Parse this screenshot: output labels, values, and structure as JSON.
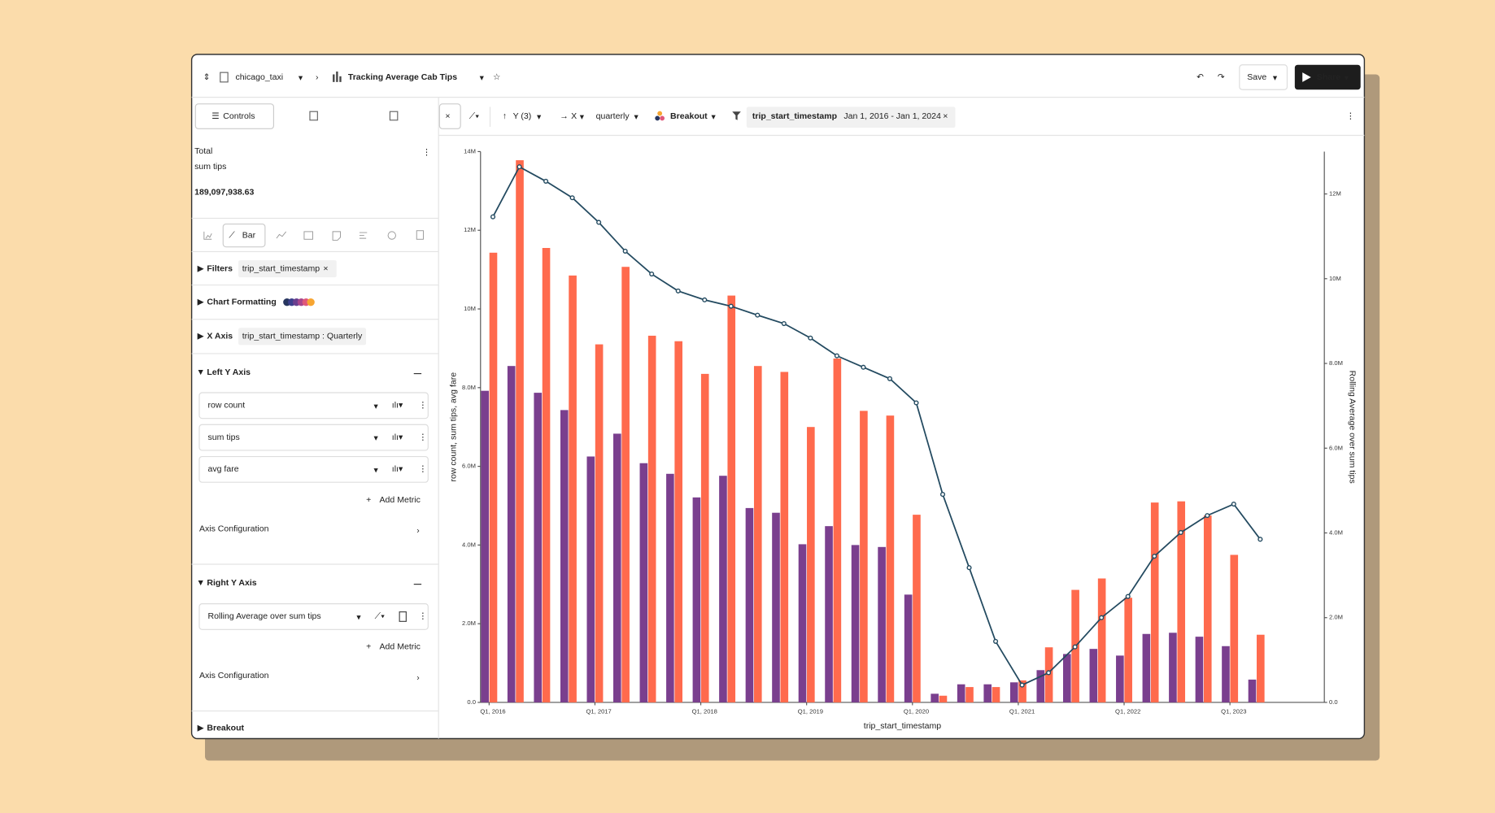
{
  "header": {
    "dataset": "chicago_taxi",
    "title": "Tracking Average Cab Tips",
    "save": "Save",
    "share": "Share"
  },
  "sidebar": {
    "tab": "Controls",
    "total_label": "Total",
    "total_metric": "sum tips",
    "total_value": "189,097,938.63",
    "chart_type": "Bar",
    "filters": {
      "label": "Filters",
      "chip": "trip_start_timestamp"
    },
    "chart_formatting": "Chart Formatting",
    "x_axis": {
      "label": "X Axis",
      "chip": "trip_start_timestamp : Quarterly"
    },
    "left_y_axis": {
      "label": "Left Y Axis",
      "metrics": [
        "row count",
        "sum tips",
        "avg fare"
      ],
      "add_metric": "Add Metric",
      "axis_configuration": "Axis Configuration"
    },
    "right_y_axis": {
      "label": "Right Y Axis",
      "metrics": [
        "Rolling Average over sum tips"
      ],
      "add_metric": "Add Metric",
      "axis_configuration": "Axis Configuration"
    },
    "breakout": "Breakout"
  },
  "chart_toolbar": {
    "y": "Y (3)",
    "x": "X",
    "grain": "quarterly",
    "breakout": "Breakout",
    "filter_field": "trip_start_timestamp",
    "filter_range": "Jan 1, 2016 - Jan 1, 2024"
  },
  "chart_data": {
    "type": "combo",
    "xlabel": "trip_start_timestamp",
    "ylabel": "row count, sum tips, avg fare",
    "y2label": "Rolling Average over sum tips",
    "categories": [
      "Q1, 2016",
      null,
      null,
      null,
      "Q1, 2017",
      null,
      null,
      null,
      "Q1, 2018",
      null,
      null,
      null,
      "Q1, 2019",
      null,
      null,
      null,
      "Q1, 2020",
      null,
      null,
      null,
      "Q1, 2021",
      null,
      null,
      null,
      "Q1, 2022",
      null,
      null,
      null,
      "Q1, 2023",
      null
    ],
    "ylim": [
      0,
      14000000
    ],
    "yticks": [
      {
        "value": 0,
        "label": "0.0"
      },
      {
        "value": 2000000,
        "label": "2.0M"
      },
      {
        "value": 4000000,
        "label": "4.0M"
      },
      {
        "value": 6000000,
        "label": "6.0M"
      },
      {
        "value": 8000000,
        "label": "8.0M"
      },
      {
        "value": 10000000,
        "label": "10M"
      },
      {
        "value": 12000000,
        "label": "12M"
      },
      {
        "value": 14000000,
        "label": "14M"
      }
    ],
    "y2lim": [
      0,
      13000000
    ],
    "y2ticks": [
      {
        "value": 0,
        "label": "0.0"
      },
      {
        "value": 2000000,
        "label": "2.0M"
      },
      {
        "value": 4000000,
        "label": "4.0M"
      },
      {
        "value": 6000000,
        "label": "6.0M"
      },
      {
        "value": 8000000,
        "label": "8.0M"
      },
      {
        "value": 10000000,
        "label": "10M"
      },
      {
        "value": 12000000,
        "label": "12M"
      }
    ],
    "grid": false,
    "series": [
      {
        "name": "row count",
        "type": "bar",
        "color": "#7a3f8e",
        "values": [
          7920000,
          8550000,
          7870000,
          7430000,
          6250000,
          6830000,
          6080000,
          5810000,
          5210000,
          5760000,
          4940000,
          4820000,
          4020000,
          4480000,
          4000000,
          3950000,
          2740000,
          220000,
          460000,
          460000,
          510000,
          820000,
          1230000,
          1360000,
          1190000,
          1740000,
          1770000,
          1670000,
          1430000,
          580000
        ]
      },
      {
        "name": "sum tips",
        "type": "bar",
        "color": "#ff6a4d",
        "values": [
          11430000,
          13780000,
          11550000,
          10850000,
          9100000,
          11070000,
          9320000,
          9180000,
          8350000,
          10340000,
          8550000,
          8400000,
          7000000,
          8740000,
          7410000,
          7290000,
          4770000,
          170000,
          390000,
          390000,
          560000,
          1400000,
          2860000,
          3150000,
          2660000,
          5080000,
          5110000,
          4750000,
          3750000,
          1720000
        ]
      },
      {
        "name": "Rolling Average over sum tips",
        "type": "line",
        "axis": "y2",
        "color": "#234a60",
        "values": [
          11460000,
          12640000,
          12300000,
          11910000,
          11330000,
          10650000,
          10110000,
          9710000,
          9500000,
          9350000,
          9140000,
          8940000,
          8600000,
          8180000,
          7910000,
          7640000,
          7070000,
          4910000,
          3180000,
          1440000,
          410000,
          700000,
          1310000,
          2000000,
          2500000,
          3450000,
          4010000,
          4410000,
          4680000,
          3850000
        ]
      }
    ]
  }
}
